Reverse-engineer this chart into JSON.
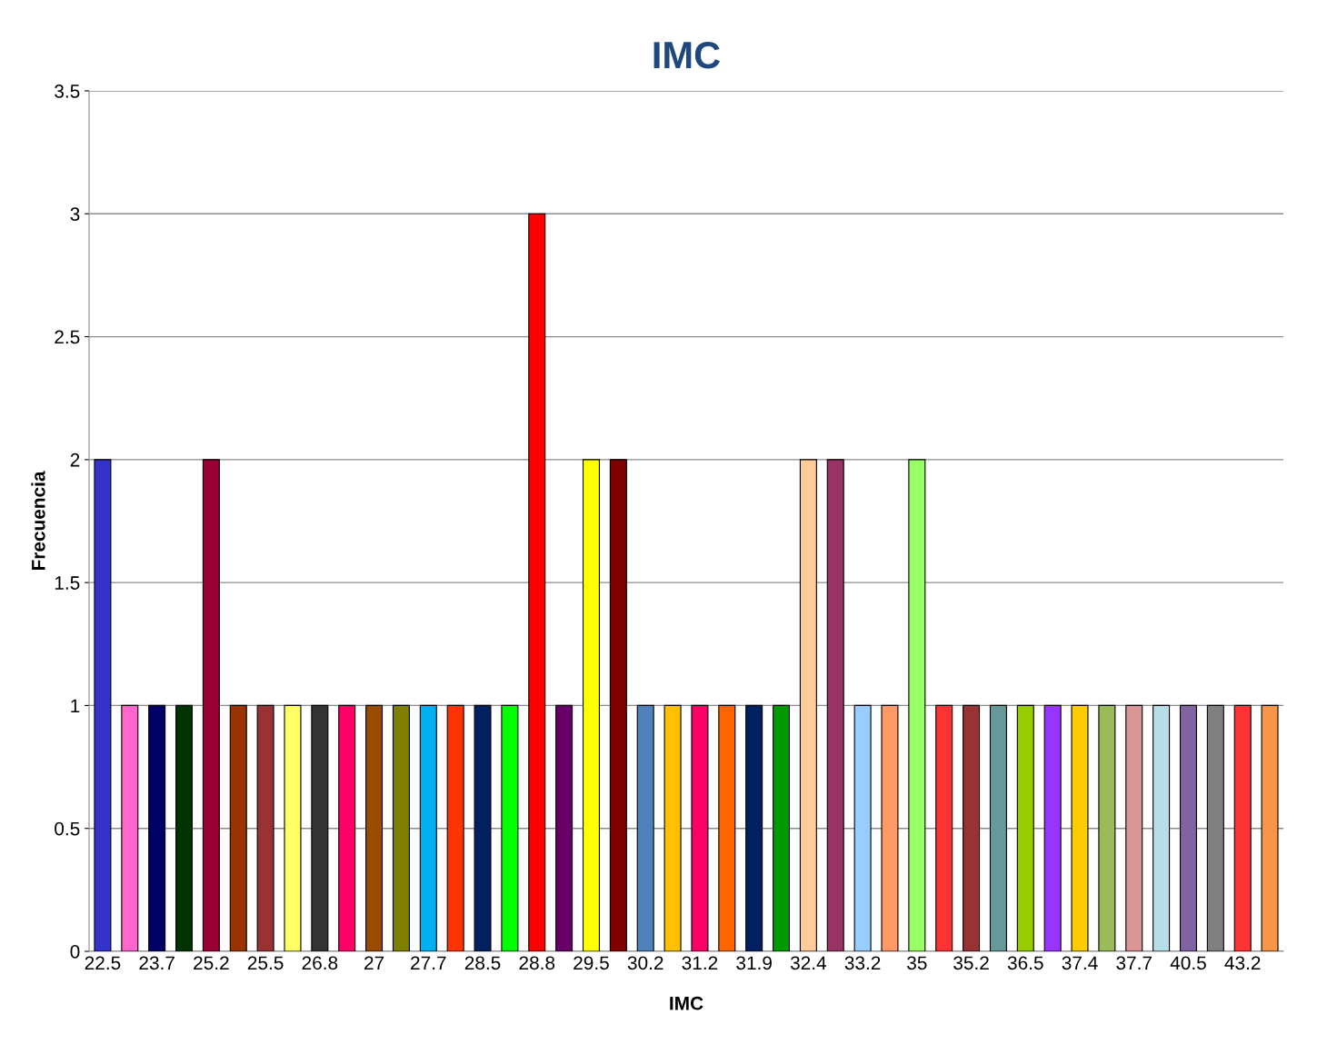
{
  "chart_data": {
    "type": "bar",
    "title": "IMC",
    "xlabel": "IMC",
    "ylabel": "Frecuencia",
    "categories": [
      "22.5",
      null,
      "23.7",
      null,
      "25.2",
      null,
      "25.5",
      null,
      "26.8",
      null,
      "27",
      null,
      "27.7",
      null,
      "28.5",
      null,
      "28.8",
      null,
      "29.5",
      null,
      "30.2",
      null,
      "31.2",
      null,
      "31.9",
      null,
      "32.4",
      null,
      "33.2",
      null,
      "35",
      null,
      "35.2",
      null,
      "36.5",
      null,
      "37.4",
      null,
      "37.7",
      null,
      "40.5",
      null,
      "43.2",
      null
    ],
    "values": [
      2,
      1,
      1,
      1,
      2,
      1,
      1,
      1,
      1,
      1,
      1,
      1,
      1,
      1,
      1,
      1,
      3,
      1,
      2,
      2,
      1,
      1,
      1,
      1,
      1,
      1,
      2,
      2,
      1,
      1,
      2,
      1,
      1,
      1,
      1,
      1,
      1,
      1,
      1,
      1,
      1,
      1,
      1,
      1
    ],
    "colors": [
      "#3333cc",
      "#ff66cc",
      "#000066",
      "#003300",
      "#990033",
      "#993300",
      "#993333",
      "#ffff66",
      "#333333",
      "#ff0066",
      "#994c00",
      "#808000",
      "#00b0f0",
      "#ff3300",
      "#002060",
      "#00ff00",
      "#ff0000",
      "#660066",
      "#ffff00",
      "#800000",
      "#4f81bd",
      "#ffc000",
      "#ff0066",
      "#ff6600",
      "#002060",
      "#009900",
      "#ffcc99",
      "#993366",
      "#99ccff",
      "#ff9966",
      "#99ff66",
      "#ff3333",
      "#993333",
      "#669999",
      "#99cc00",
      "#9933ff",
      "#ffcc00",
      "#9bbb59",
      "#da9694",
      "#b7dee8",
      "#8064a2",
      "#808080",
      "#ff3333",
      "#f79646"
    ],
    "ylim": [
      0,
      3.5
    ],
    "yticks": [
      0,
      0.5,
      1,
      1.5,
      2,
      2.5,
      3,
      3.5
    ],
    "grid": "y",
    "legend": false
  }
}
